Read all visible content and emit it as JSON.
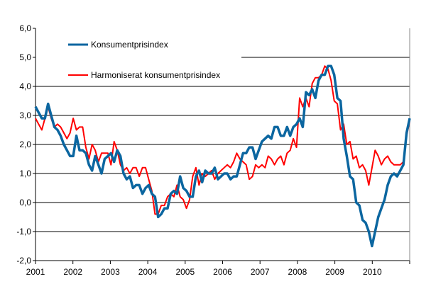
{
  "chart_data": {
    "type": "line",
    "title": "",
    "xlabel": "",
    "ylabel": "",
    "ylim": [
      -2,
      6
    ],
    "grid": true,
    "legend_position": "top-left (inside plot)",
    "x_tick_labels": [
      "2001",
      "2002",
      "2003",
      "2004",
      "2005",
      "2006",
      "2007",
      "2008",
      "2009",
      "2010"
    ],
    "y_tick_labels": [
      "-2,0",
      "-1,0",
      "0,0",
      "1,0",
      "2,0",
      "3,0",
      "4,0",
      "5,0",
      "6,0"
    ],
    "y_ticks": [
      -2,
      -1,
      0,
      1,
      2,
      3,
      4,
      5,
      6
    ],
    "x_start": "2001-01",
    "x_frequency": "monthly",
    "series": [
      {
        "name": "Konsumentprisindex",
        "color": "#0B66A0",
        "values": [
          3.3,
          3.1,
          2.9,
          2.9,
          3.4,
          3.0,
          2.6,
          2.5,
          2.3,
          2.0,
          1.8,
          1.6,
          1.6,
          2.3,
          1.8,
          1.8,
          1.7,
          1.3,
          1.1,
          1.6,
          1.3,
          1.0,
          1.5,
          1.6,
          1.7,
          1.4,
          1.8,
          1.6,
          1.0,
          0.8,
          0.9,
          0.5,
          0.6,
          0.6,
          0.3,
          0.5,
          0.6,
          0.3,
          0.2,
          -0.5,
          -0.4,
          -0.2,
          -0.2,
          0.3,
          0.4,
          0.3,
          0.9,
          0.5,
          0.4,
          0.2,
          0.2,
          0.9,
          1.1,
          0.7,
          1.1,
          1.0,
          1.0,
          1.2,
          0.8,
          0.9,
          1.0,
          1.0,
          0.8,
          0.9,
          0.9,
          1.3,
          1.7,
          1.7,
          1.9,
          1.9,
          1.5,
          1.8,
          2.1,
          2.2,
          2.3,
          2.2,
          2.6,
          2.6,
          2.3,
          2.3,
          2.6,
          2.3,
          2.6,
          2.7,
          2.9,
          2.6,
          3.8,
          3.7,
          3.9,
          3.6,
          4.2,
          4.4,
          4.4,
          4.7,
          4.7,
          4.4,
          3.6,
          3.5,
          2.2,
          1.6,
          0.9,
          0.8,
          0.0,
          -0.1,
          -0.6,
          -0.7,
          -1.0,
          -1.5,
          -1.0,
          -0.5,
          -0.2,
          0.1,
          0.6,
          0.9,
          1.0,
          0.9,
          1.1,
          1.3,
          2.4,
          2.9
        ]
      },
      {
        "name": "Harmoniserat konsumentprisindex",
        "color": "#FF0000",
        "values": [
          2.9,
          2.7,
          2.5,
          2.9,
          3.3,
          2.9,
          2.6,
          2.7,
          2.6,
          2.4,
          2.2,
          2.4,
          2.9,
          2.5,
          2.6,
          2.6,
          1.9,
          1.5,
          2.0,
          1.8,
          1.4,
          1.7,
          1.7,
          1.7,
          1.3,
          2.1,
          1.8,
          1.3,
          1.1,
          1.2,
          1.0,
          1.2,
          1.2,
          0.9,
          1.2,
          1.2,
          0.8,
          0.4,
          -0.4,
          -0.4,
          -0.1,
          -0.1,
          0.2,
          0.3,
          0.2,
          0.6,
          0.2,
          0.1,
          -0.2,
          0.1,
          0.9,
          1.2,
          0.6,
          1.0,
          0.9,
          1.0,
          1.1,
          0.8,
          1.0,
          1.1,
          1.2,
          1.3,
          1.2,
          1.4,
          1.7,
          1.5,
          1.4,
          1.3,
          0.8,
          0.9,
          1.3,
          1.2,
          1.3,
          1.2,
          1.6,
          1.5,
          1.3,
          1.5,
          1.6,
          1.3,
          1.7,
          1.8,
          2.2,
          1.9,
          3.6,
          3.3,
          3.6,
          3.3,
          4.1,
          4.3,
          4.3,
          4.4,
          4.7,
          4.6,
          4.2,
          3.5,
          3.4,
          2.5,
          2.7,
          2.0,
          2.1,
          1.5,
          1.6,
          1.2,
          1.3,
          1.1,
          0.6,
          1.2,
          1.8,
          1.6,
          1.3,
          1.5,
          1.6,
          1.4,
          1.3,
          1.3,
          1.3,
          1.4,
          2.3,
          2.8
        ]
      }
    ]
  }
}
